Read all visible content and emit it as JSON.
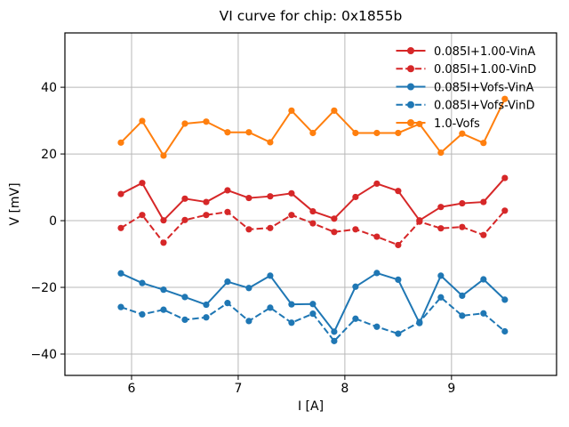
{
  "chart_data": {
    "type": "line",
    "title": "VI curve for chip: 0x1855b",
    "xlabel": "I [A]",
    "ylabel": "V [mV]",
    "xlim": [
      5.375,
      9.985
    ],
    "ylim": [
      -46.4,
      56.3
    ],
    "xticks": [
      6,
      7,
      8,
      9
    ],
    "yticks": [
      -40,
      -20,
      0,
      20,
      40
    ],
    "grid": true,
    "legend_position": "upper right",
    "legend_frame": false,
    "x": [
      5.9,
      6.1,
      6.3,
      6.5,
      6.7,
      6.9,
      7.1,
      7.3,
      7.5,
      7.7,
      7.9,
      8.1,
      8.3,
      8.5,
      8.7,
      8.9,
      9.1,
      9.3,
      9.5
    ],
    "series": [
      {
        "name": "0.085I+1.00-VinA",
        "color": "#d62728",
        "style": "solid",
        "marker": "circle",
        "values": [
          8.0,
          11.3,
          0.1,
          6.6,
          5.6,
          9.1,
          6.8,
          7.3,
          8.2,
          2.8,
          0.6,
          7.1,
          11.1,
          8.9,
          0.1,
          4.1,
          5.2,
          5.6,
          12.8
        ]
      },
      {
        "name": "0.085I+1.00-VinD",
        "color": "#d62728",
        "style": "dashed",
        "marker": "circle",
        "values": [
          -2.2,
          1.7,
          -6.6,
          0.2,
          1.7,
          2.6,
          -2.6,
          -2.2,
          1.7,
          -0.8,
          -3.4,
          -2.6,
          -4.8,
          -7.3,
          -0.3,
          -2.3,
          -1.9,
          -4.3,
          3.0
        ]
      },
      {
        "name": "0.085I+Vofs-VinA",
        "color": "#1f77b4",
        "style": "solid",
        "marker": "circle",
        "values": [
          -15.8,
          -18.7,
          -20.7,
          -22.9,
          -25.2,
          -18.3,
          -20.2,
          -16.5,
          -25.1,
          -25.0,
          -33.3,
          -19.8,
          -15.7,
          -17.7,
          -30.7,
          -16.5,
          -22.5,
          -17.6,
          -23.7
        ]
      },
      {
        "name": "0.085I+Vofs-VinD",
        "color": "#1f77b4",
        "style": "dashed",
        "marker": "circle",
        "values": [
          -25.9,
          -28.1,
          -26.7,
          -29.7,
          -29.0,
          -24.7,
          -30.1,
          -26.1,
          -30.6,
          -27.9,
          -36.1,
          -29.4,
          -31.8,
          -33.9,
          -30.4,
          -23.0,
          -28.5,
          -27.8,
          -33.2
        ]
      },
      {
        "name": "1.0-Vofs",
        "color": "#ff7f0e",
        "style": "solid",
        "marker": "circle",
        "values": [
          23.4,
          29.9,
          19.5,
          29.1,
          29.7,
          26.5,
          26.5,
          23.5,
          33.0,
          26.3,
          33.0,
          26.3,
          26.3,
          26.3,
          29.0,
          20.4,
          26.1,
          23.3,
          36.5
        ]
      }
    ],
    "colors": {
      "grid": "#b8b8b8",
      "spine": "#000000",
      "background": "#ffffff"
    }
  }
}
